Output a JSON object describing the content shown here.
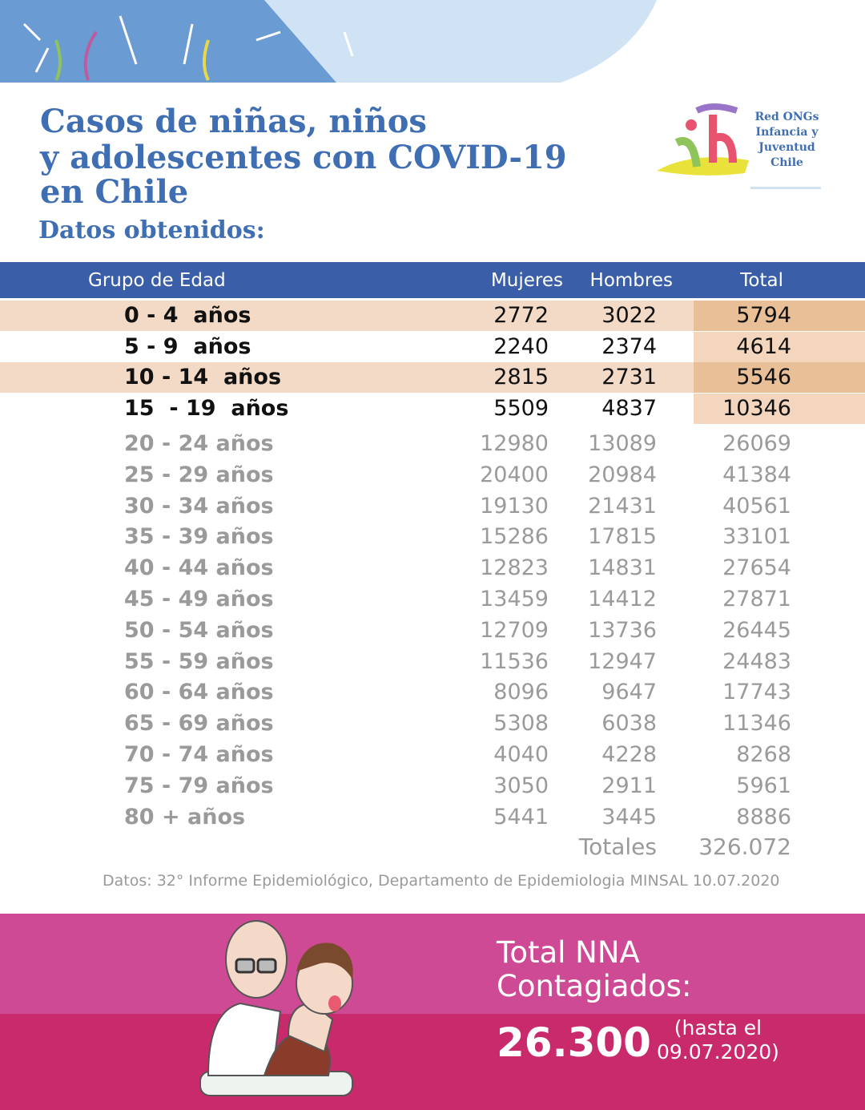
{
  "header": {
    "title_lines": [
      "Casos de niñas, niños",
      "y adolescentes con COVID-19",
      "en Chile"
    ],
    "subtitle": "Datos obtenidos:"
  },
  "logo": {
    "lines": [
      "Red ONGs",
      "Infancia y",
      "Juventud",
      "Chile"
    ]
  },
  "table": {
    "columns": [
      "Grupo de Edad",
      "Mujeres",
      "Hombres",
      "Total"
    ],
    "rows": [
      [
        "0 - 4  años",
        "2772",
        "3022",
        "5794"
      ],
      [
        "5 - 9  años",
        "2240",
        "2374",
        "4614"
      ],
      [
        "10 - 14  años",
        "2815",
        "2731",
        "5546"
      ],
      [
        "15  - 19  años",
        "5509",
        "4837",
        "10346"
      ],
      [
        "20 - 24 años",
        "12980",
        "13089",
        "26069"
      ],
      [
        "25 - 29 años",
        "20400",
        "20984",
        "41384"
      ],
      [
        "30 - 34 años",
        "19130",
        "21431",
        "40561"
      ],
      [
        "35 - 39 años",
        "15286",
        "17815",
        "33101"
      ],
      [
        "40 - 44 años",
        "12823",
        "14831",
        "27654"
      ],
      [
        "45 - 49 años",
        "13459",
        "14412",
        "27871"
      ],
      [
        "50 - 54 años",
        "12709",
        "13736",
        "26445"
      ],
      [
        "55 - 59 años",
        "11536",
        "12947",
        "24483"
      ],
      [
        "60 - 64 años",
        "8096",
        "9647",
        "17743"
      ],
      [
        "65 - 69 años",
        "5308",
        "6038",
        "11346"
      ],
      [
        "70 - 74 años",
        "4040",
        "4228",
        "8268"
      ],
      [
        "75 - 79 años",
        "3050",
        "2911",
        "5961"
      ],
      [
        "80 + años",
        "5441",
        "3445",
        "8886"
      ]
    ],
    "totals_label": "Totales",
    "totals_value": "326.072"
  },
  "source": "Datos: 32° Informe Epidemiológico, Departamento de Epidemiologia MINSAL 10.07.2020",
  "footer": {
    "label_lines": [
      "Total NNA",
      "Contagiados:"
    ],
    "value": "26.300",
    "note_lines": [
      "(hasta el",
      "09.07.2020)"
    ]
  }
}
